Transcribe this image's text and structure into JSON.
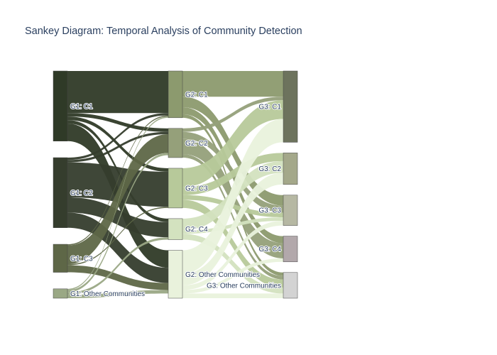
{
  "title": "Sankey Diagram: Temporal Analysis of Community Detection",
  "nodes": [
    {
      "id": "g1c1",
      "label": "G1: C1",
      "color": "#2f3a27"
    },
    {
      "id": "g1c2",
      "label": "G1: C2",
      "color": "#353d2d"
    },
    {
      "id": "g1c3",
      "label": "G1: C3",
      "color": "#5e6747"
    },
    {
      "id": "g1oc",
      "label": "G1: Other Communities",
      "color": "#9aa885"
    },
    {
      "id": "g2c1",
      "label": "G2: C1",
      "color": "#8c9a6e"
    },
    {
      "id": "g2c2",
      "label": "G2: C2",
      "color": "#95a07a"
    },
    {
      "id": "g2c3",
      "label": "G2: C3",
      "color": "#b7c99a"
    },
    {
      "id": "g2c4",
      "label": "G2: C4",
      "color": "#d3e2bf"
    },
    {
      "id": "g2oc",
      "label": "G2: Other Communities",
      "color": "#e9f2dc"
    },
    {
      "id": "g3c1",
      "label": "G3: C1",
      "color": "#6d735d"
    },
    {
      "id": "g3c2",
      "label": "G3: C2",
      "color": "#a4a88a"
    },
    {
      "id": "g3c3",
      "label": "G3: C3",
      "color": "#b6b8a3"
    },
    {
      "id": "g3c4",
      "label": "G3: C4",
      "color": "#b2a8ab"
    },
    {
      "id": "g3oc",
      "label": "G3: Other Communities",
      "color": "#d3d3d3"
    }
  ],
  "links": [
    {
      "source": "g1c1",
      "target": "g2c1",
      "value": 36,
      "color": "#2f3a27"
    },
    {
      "source": "g1c1",
      "target": "g2c2",
      "value": 3,
      "color": "#2f3a27"
    },
    {
      "source": "g1c1",
      "target": "g2c3",
      "value": 3,
      "color": "#2f3a27"
    },
    {
      "source": "g1c1",
      "target": "g2c4",
      "value": 3,
      "color": "#2f3a27"
    },
    {
      "source": "g1c1",
      "target": "g2oc",
      "value": 15,
      "color": "#2f3a27"
    },
    {
      "source": "g1c2",
      "target": "g2c1",
      "value": 2,
      "color": "#353d2d"
    },
    {
      "source": "g1c2",
      "target": "g2c2",
      "value": 2,
      "color": "#353d2d"
    },
    {
      "source": "g1c2",
      "target": "g2c3",
      "value": 30,
      "color": "#353d2d"
    },
    {
      "source": "g1c2",
      "target": "g2c4",
      "value": 13,
      "color": "#353d2d"
    },
    {
      "source": "g1c2",
      "target": "g2oc",
      "value": 13,
      "color": "#353d2d"
    },
    {
      "source": "g1c3",
      "target": "g2c1",
      "value": 1,
      "color": "#5e6747"
    },
    {
      "source": "g1c3",
      "target": "g2c2",
      "value": 16,
      "color": "#5e6747"
    },
    {
      "source": "g1c3",
      "target": "g2c3",
      "value": 1,
      "color": "#5e6747"
    },
    {
      "source": "g1c3",
      "target": "g2oc",
      "value": 6,
      "color": "#5e6747"
    },
    {
      "source": "g1oc",
      "target": "g2c1",
      "value": 1,
      "color": "#9aa885"
    },
    {
      "source": "g1oc",
      "target": "g2c2",
      "value": 2,
      "color": "#9aa885"
    },
    {
      "source": "g1oc",
      "target": "g2c4",
      "value": 2,
      "color": "#9aa885"
    },
    {
      "source": "g1oc",
      "target": "g2oc",
      "value": 3,
      "color": "#9aa885"
    },
    {
      "source": "g2c1",
      "target": "g3c1",
      "value": 22,
      "color": "#8c9a6e"
    },
    {
      "source": "g2c1",
      "target": "g3c3",
      "value": 9,
      "color": "#8c9a6e"
    },
    {
      "source": "g2c1",
      "target": "g3c4",
      "value": 6,
      "color": "#8c9a6e"
    },
    {
      "source": "g2c1",
      "target": "g3oc",
      "value": 3,
      "color": "#8c9a6e"
    },
    {
      "source": "g2c2",
      "target": "g3c1",
      "value": 3,
      "color": "#95a07a"
    },
    {
      "source": "g2c2",
      "target": "g3c3",
      "value": 6,
      "color": "#95a07a"
    },
    {
      "source": "g2c2",
      "target": "g3c4",
      "value": 13,
      "color": "#95a07a"
    },
    {
      "source": "g2c2",
      "target": "g3oc",
      "value": 3,
      "color": "#95a07a"
    },
    {
      "source": "g2c3",
      "target": "g3c1",
      "value": 16,
      "color": "#b7c99a"
    },
    {
      "source": "g2c3",
      "target": "g3c2",
      "value": 7,
      "color": "#b7c99a"
    },
    {
      "source": "g2c3",
      "target": "g3c3",
      "value": 4,
      "color": "#b7c99a"
    },
    {
      "source": "g2c3",
      "target": "g3oc",
      "value": 7,
      "color": "#b7c99a"
    },
    {
      "source": "g2c4",
      "target": "g3c2",
      "value": 10,
      "color": "#d3e2bf"
    },
    {
      "source": "g2c4",
      "target": "g3c3",
      "value": 3,
      "color": "#d3e2bf"
    },
    {
      "source": "g2c4",
      "target": "g3oc",
      "value": 5,
      "color": "#d3e2bf"
    },
    {
      "source": "g2oc",
      "target": "g3c1",
      "value": 20,
      "color": "#e9f2dc"
    },
    {
      "source": "g2oc",
      "target": "g3c2",
      "value": 10,
      "color": "#e9f2dc"
    },
    {
      "source": "g2oc",
      "target": "g3c3",
      "value": 4,
      "color": "#e9f2dc"
    },
    {
      "source": "g2oc",
      "target": "g3c4",
      "value": 3,
      "color": "#e9f2dc"
    },
    {
      "source": "g2oc",
      "target": "g3oc",
      "value": 4,
      "color": "#e9f2dc"
    }
  ]
}
